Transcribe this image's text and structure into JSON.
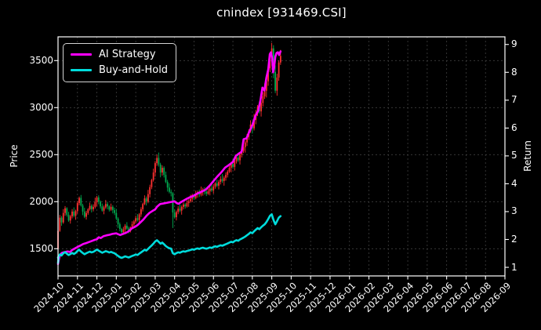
{
  "title": "cnindex [931469.CSI]",
  "chart_data": {
    "type": "candlestick+line",
    "title": "cnindex [931469.CSI]",
    "background": "#000000",
    "grid": true,
    "grid_color": "#3f3f3f",
    "spine_color": "#ffffff",
    "price_axis": {
      "label": "Price",
      "ticks": [
        1500,
        2000,
        2500,
        3000,
        3500
      ],
      "lim": [
        1211,
        3752
      ]
    },
    "return_axis": {
      "label": "Return",
      "ticks": [
        1,
        2,
        3,
        4,
        5,
        6,
        7,
        8,
        9
      ],
      "lim": [
        0.69,
        9.27
      ]
    },
    "x_axis": {
      "tick_labels": [
        "2024-10",
        "2024-11",
        "2024-12",
        "2025-01",
        "2025-02",
        "2025-03",
        "2025-04",
        "2025-05",
        "2025-06",
        "2025-07",
        "2025-08",
        "2025-09",
        "2025-10",
        "2025-11",
        "2025-12",
        "2026-01",
        "2026-02",
        "2026-03",
        "2026-04",
        "2026-05",
        "2026-06",
        "2026-07",
        "2026-08",
        "2026-09"
      ],
      "data_ends_at": "2025-09 (mid-month); rest of axis is empty"
    },
    "legend": {
      "position": "upper left",
      "items": [
        {
          "label": "AI Strategy",
          "color": "#ff00ff"
        },
        {
          "label": "Buy-and-Hold",
          "color": "#00dcdc"
        }
      ]
    },
    "candles": {
      "note": "index price candles (left axis), red = up, green = down, ~2-3 trading days per candle",
      "first_open": 1500,
      "step_months": 0.0909,
      "closes": [
        1690,
        1830,
        1780,
        1880,
        1930,
        1860,
        1800,
        1845,
        1895,
        1850,
        1900,
        1985,
        2040,
        1960,
        1895,
        1840,
        1880,
        1920,
        1955,
        1920,
        1945,
        1995,
        2045,
        2000,
        1950,
        1905,
        1940,
        1975,
        1950,
        1915,
        1945,
        1910,
        1880,
        1820,
        1760,
        1710,
        1675,
        1705,
        1745,
        1715,
        1690,
        1725,
        1760,
        1790,
        1825,
        1805,
        1865,
        1920,
        1975,
        2035,
        2000,
        2080,
        2155,
        2230,
        2310,
        2410,
        2465,
        2395,
        2310,
        2360,
        2285,
        2210,
        2150,
        2105,
        2090,
        1885,
        1835,
        1890,
        1925,
        1905,
        1945,
        1970,
        1950,
        1985,
        2005,
        2030,
        2060,
        2040,
        2080,
        2100,
        2075,
        2110,
        2130,
        2105,
        2085,
        2110,
        2140,
        2120,
        2160,
        2195,
        2170,
        2210,
        2240,
        2220,
        2255,
        2285,
        2320,
        2360,
        2400,
        2370,
        2430,
        2470,
        2440,
        2500,
        2540,
        2580,
        2630,
        2690,
        2750,
        2820,
        2780,
        2870,
        2940,
        3010,
        2960,
        3050,
        3120,
        3180,
        3280,
        3420,
        3560,
        3630,
        3380,
        3180,
        3320,
        3480,
        3550
      ],
      "wick_up_pattern": [
        18,
        40,
        25,
        55,
        30,
        15,
        45,
        22,
        35,
        60,
        20,
        28
      ],
      "wick_down_pattern": [
        30,
        15,
        50,
        20,
        40,
        25,
        18,
        45,
        30,
        22,
        55,
        35
      ],
      "low_overrides": {
        "0": 1455,
        "65": 1720
      },
      "up_color": "#ff3030",
      "down_color": "#00a94f"
    },
    "series": [
      {
        "name": "AI Strategy",
        "axis": "return",
        "color": "#ff00ff",
        "line_width": 2.6,
        "points": [
          [
            0,
            1.12
          ],
          [
            0.05,
            1.3
          ],
          [
            0.1,
            1.45
          ],
          [
            0.2,
            1.52
          ],
          [
            0.35,
            1.55
          ],
          [
            0.5,
            1.57
          ],
          [
            0.62,
            1.55
          ],
          [
            0.72,
            1.62
          ],
          [
            0.85,
            1.67
          ],
          [
            1.0,
            1.73
          ],
          [
            1.15,
            1.78
          ],
          [
            1.3,
            1.84
          ],
          [
            1.45,
            1.87
          ],
          [
            1.6,
            1.91
          ],
          [
            1.75,
            1.95
          ],
          [
            1.9,
            1.99
          ],
          [
            2.0,
            2.01
          ],
          [
            2.1,
            2.08
          ],
          [
            2.2,
            2.05
          ],
          [
            2.35,
            2.12
          ],
          [
            2.5,
            2.15
          ],
          [
            2.65,
            2.17
          ],
          [
            2.8,
            2.2
          ],
          [
            3.0,
            2.22
          ],
          [
            3.1,
            2.19
          ],
          [
            3.2,
            2.16
          ],
          [
            3.35,
            2.2
          ],
          [
            3.5,
            2.24
          ],
          [
            3.65,
            2.3
          ],
          [
            3.8,
            2.4
          ],
          [
            3.95,
            2.45
          ],
          [
            4.1,
            2.52
          ],
          [
            4.25,
            2.62
          ],
          [
            4.4,
            2.72
          ],
          [
            4.55,
            2.85
          ],
          [
            4.7,
            2.95
          ],
          [
            4.85,
            3.02
          ],
          [
            5.0,
            3.08
          ],
          [
            5.1,
            3.18
          ],
          [
            5.25,
            3.27
          ],
          [
            5.4,
            3.29
          ],
          [
            5.55,
            3.31
          ],
          [
            5.7,
            3.33
          ],
          [
            5.85,
            3.35
          ],
          [
            6.0,
            3.37
          ],
          [
            6.1,
            3.31
          ],
          [
            6.2,
            3.28
          ],
          [
            6.35,
            3.35
          ],
          [
            6.5,
            3.41
          ],
          [
            6.65,
            3.47
          ],
          [
            6.8,
            3.52
          ],
          [
            7.0,
            3.58
          ],
          [
            7.2,
            3.66
          ],
          [
            7.4,
            3.72
          ],
          [
            7.6,
            3.79
          ],
          [
            7.8,
            3.93
          ],
          [
            8.0,
            4.1
          ],
          [
            8.2,
            4.26
          ],
          [
            8.4,
            4.41
          ],
          [
            8.6,
            4.58
          ],
          [
            8.75,
            4.65
          ],
          [
            9.0,
            4.78
          ],
          [
            9.15,
            5.0
          ],
          [
            9.3,
            5.08
          ],
          [
            9.45,
            5.15
          ],
          [
            9.55,
            5.6
          ],
          [
            9.7,
            5.63
          ],
          [
            9.85,
            5.88
          ],
          [
            10.0,
            6.1
          ],
          [
            10.15,
            6.42
          ],
          [
            10.3,
            6.62
          ],
          [
            10.42,
            7.0
          ],
          [
            10.52,
            7.45
          ],
          [
            10.62,
            7.35
          ],
          [
            10.72,
            7.8
          ],
          [
            10.82,
            8.1
          ],
          [
            10.9,
            8.65
          ],
          [
            10.96,
            8.72
          ],
          [
            11.02,
            8.5
          ],
          [
            11.07,
            8.0
          ],
          [
            11.12,
            8.18
          ],
          [
            11.18,
            8.55
          ],
          [
            11.25,
            8.7
          ],
          [
            11.32,
            8.72
          ],
          [
            11.38,
            8.62
          ],
          [
            11.45,
            8.75
          ]
        ],
        "final_value": 8.75
      },
      {
        "name": "Buy-and-Hold",
        "axis": "return",
        "color": "#00dcdc",
        "line_width": 2.6,
        "derived_from": "candle closes divided by base price",
        "base_price": 1250,
        "prefix_points": [
          [
            0,
            1.16
          ],
          [
            0.02,
            1.3
          ]
        ],
        "final_value": 2.84
      }
    ]
  }
}
